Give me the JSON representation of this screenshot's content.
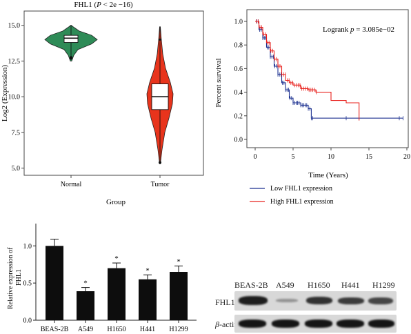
{
  "violin": {
    "title": "FHL1 (",
    "title_p": "P",
    "title_rest": " < 2e −16)",
    "ylabel": "Log2 (Expression)",
    "xlabel": "Group",
    "yticks": [
      "15.0",
      "12.5",
      "10.0",
      "7.5",
      "5.0"
    ],
    "groups": [
      "Normal",
      "Tumor"
    ],
    "colors": {
      "normal": "#2e8b57",
      "tumor": "#e8341c"
    }
  },
  "km": {
    "annotation_prefix": "Logrank ",
    "annotation_p": "p",
    "annotation_value": " = 3.085e−02",
    "ylabel": "Percent survival",
    "xlabel": "Time (Years)",
    "yticks": [
      "1.0",
      "0.8",
      "0.6",
      "0.4",
      "0.2",
      "0.0"
    ],
    "xticks": [
      "0",
      "5",
      "10",
      "15",
      "20"
    ],
    "legend": [
      {
        "label": "Low FHL1 expression",
        "color": "#1a2f8f"
      },
      {
        "label": "High FHL1 expression",
        "color": "#e8201c"
      }
    ]
  },
  "bar": {
    "ylabel": "Relative expression of FHL1",
    "yticks": [
      "1.0",
      "0.5",
      "0.0"
    ],
    "star": "*"
  },
  "blot": {
    "columns": [
      "BEAS-2B",
      "A549",
      "H1650",
      "H441",
      "H1299"
    ],
    "rows": [
      {
        "label": "FHL1"
      },
      {
        "label_italic": "β",
        "label_rest": "-actin"
      }
    ]
  },
  "chart_data": [
    {
      "type": "violin",
      "title": "FHL1 (P < 2e −16)",
      "xlabel": "Group",
      "ylabel": "Log2 (Expression)",
      "ylim": [
        4.5,
        16
      ],
      "categories": [
        "Normal",
        "Tumor"
      ],
      "series": [
        {
          "name": "Normal",
          "median": 14.1,
          "q1": 13.8,
          "q3": 14.3,
          "min": 12.6,
          "max": 15.0
        },
        {
          "name": "Tumor",
          "median": 10.0,
          "q1": 9.1,
          "q3": 10.9,
          "min": 5.3,
          "max": 14.9
        }
      ]
    },
    {
      "type": "line",
      "xlabel": "Time (Years)",
      "ylabel": "Percent survival",
      "xlim": [
        0,
        20
      ],
      "ylim": [
        0,
        1.0
      ],
      "annotation": "Logrank p = 3.085e−02",
      "series": [
        {
          "name": "Low FHL1 expression",
          "x": [
            0,
            0.5,
            1,
            1.5,
            2,
            2.5,
            3,
            3.5,
            4,
            4.5,
            5,
            6,
            7,
            7.4,
            10,
            15,
            19.5
          ],
          "y": [
            1.0,
            0.93,
            0.86,
            0.78,
            0.7,
            0.62,
            0.55,
            0.48,
            0.42,
            0.35,
            0.31,
            0.29,
            0.26,
            0.18,
            0.18,
            0.18,
            0.18
          ]
        },
        {
          "name": "High FHL1 expression",
          "x": [
            0,
            0.5,
            1,
            1.5,
            2,
            2.5,
            3,
            3.5,
            4,
            4.5,
            5,
            6,
            7,
            8,
            10,
            12,
            13.6,
            13.7
          ],
          "y": [
            1.0,
            0.95,
            0.89,
            0.82,
            0.75,
            0.68,
            0.62,
            0.55,
            0.5,
            0.48,
            0.46,
            0.43,
            0.42,
            0.4,
            0.33,
            0.31,
            0.31,
            0.16
          ]
        }
      ]
    },
    {
      "type": "bar",
      "ylabel": "Relative expression of FHL1",
      "ylim": [
        0,
        1.3
      ],
      "categories": [
        "BEAS-2B",
        "A549",
        "H1650",
        "H441",
        "H1299"
      ],
      "values": [
        1.0,
        0.39,
        0.7,
        0.55,
        0.65
      ],
      "errors": [
        0.09,
        0.05,
        0.07,
        0.06,
        0.08
      ],
      "significant": [
        false,
        true,
        true,
        true,
        true
      ]
    }
  ]
}
